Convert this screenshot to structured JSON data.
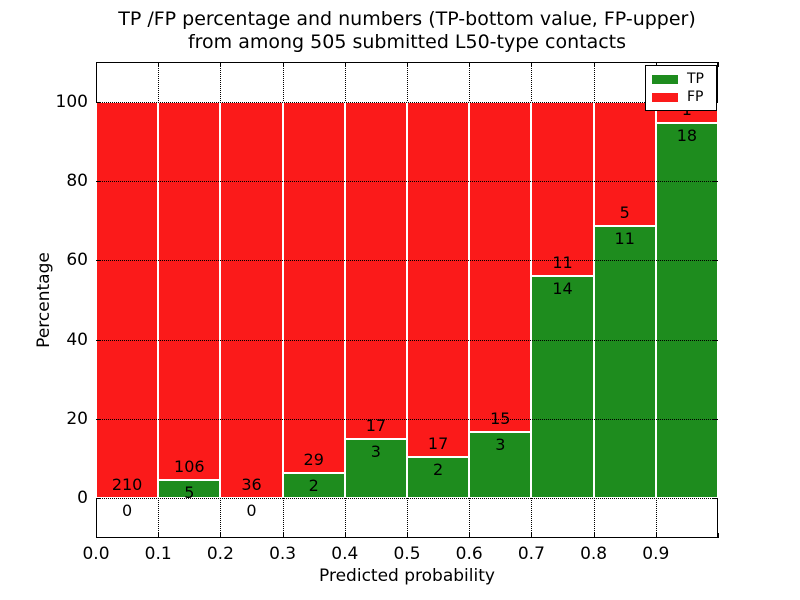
{
  "figure": {
    "title_line1": "TP /FP percentage and numbers (TP-bottom value, FP-upper)",
    "title_line2": "from among 505 submitted L50-type contacts",
    "xlabel": "Predicted probability",
    "ylabel": "Percentage"
  },
  "legend": {
    "items": [
      {
        "label": "TP",
        "color": "#1e8c1e"
      },
      {
        "label": "FP",
        "color": "#fb1a1a"
      }
    ]
  },
  "colors": {
    "tp_green": "#1e8c1e",
    "fp_red": "#fb1a1a",
    "grid": "#000000",
    "text": "#000000",
    "background": "#ffffff"
  },
  "chart_data": {
    "type": "bar",
    "stacked": true,
    "units": "percent",
    "title": "TP /FP percentage and numbers (TP-bottom value, FP-upper) from among 505 submitted L50-type contacts",
    "xlabel": "Predicted probability",
    "ylabel": "Percentage",
    "xlim": [
      0.0,
      1.0
    ],
    "ylim": [
      -10,
      110
    ],
    "xticks": [
      "0.0",
      "0.1",
      "0.2",
      "0.3",
      "0.4",
      "0.5",
      "0.6",
      "0.7",
      "0.8",
      "0.9"
    ],
    "yticks": [
      0,
      20,
      40,
      60,
      80,
      100
    ],
    "grid": "dotted",
    "legend_position": "upper right",
    "total_submitted": 505,
    "bins": [
      {
        "range": [
          0.0,
          0.1
        ],
        "tp_count": 0,
        "fp_count": 210,
        "tp_pct": 0.0,
        "fp_pct": 100.0
      },
      {
        "range": [
          0.1,
          0.2
        ],
        "tp_count": 5,
        "fp_count": 106,
        "tp_pct": 4.5,
        "fp_pct": 95.5
      },
      {
        "range": [
          0.2,
          0.3
        ],
        "tp_count": 0,
        "fp_count": 36,
        "tp_pct": 0.0,
        "fp_pct": 100.0
      },
      {
        "range": [
          0.3,
          0.4
        ],
        "tp_count": 2,
        "fp_count": 29,
        "tp_pct": 6.45,
        "fp_pct": 93.55
      },
      {
        "range": [
          0.4,
          0.5
        ],
        "tp_count": 3,
        "fp_count": 17,
        "tp_pct": 15.0,
        "fp_pct": 85.0
      },
      {
        "range": [
          0.5,
          0.6
        ],
        "tp_count": 2,
        "fp_count": 17,
        "tp_pct": 10.53,
        "fp_pct": 89.47
      },
      {
        "range": [
          0.6,
          0.7
        ],
        "tp_count": 3,
        "fp_count": 15,
        "tp_pct": 16.67,
        "fp_pct": 83.33
      },
      {
        "range": [
          0.7,
          0.8
        ],
        "tp_count": 14,
        "fp_count": 11,
        "tp_pct": 56.0,
        "fp_pct": 44.0
      },
      {
        "range": [
          0.8,
          0.9
        ],
        "tp_count": 11,
        "fp_count": 5,
        "tp_pct": 68.75,
        "fp_pct": 31.25
      },
      {
        "range": [
          0.9,
          1.0
        ],
        "tp_count": 18,
        "fp_count": 1,
        "tp_pct": 94.74,
        "fp_pct": 5.26
      }
    ],
    "series": [
      {
        "name": "TP",
        "color": "#1e8c1e",
        "pct_values": [
          0,
          4.5,
          0,
          6.45,
          15.0,
          10.53,
          16.67,
          56.0,
          68.75,
          94.74
        ],
        "counts": [
          0,
          5,
          0,
          2,
          3,
          2,
          3,
          14,
          11,
          18
        ]
      },
      {
        "name": "FP",
        "color": "#fb1a1a",
        "pct_values": [
          100,
          95.5,
          100,
          93.55,
          85.0,
          89.47,
          83.33,
          44.0,
          31.25,
          5.26
        ],
        "counts": [
          210,
          106,
          36,
          29,
          17,
          17,
          15,
          11,
          5,
          1
        ]
      }
    ]
  }
}
